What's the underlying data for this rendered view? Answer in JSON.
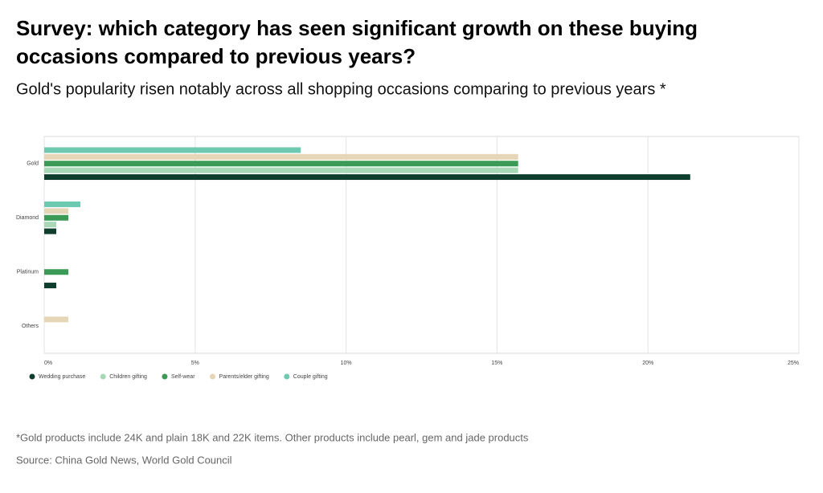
{
  "chart_data": {
    "type": "bar",
    "orientation": "horizontal",
    "title": "Survey: which category has seen significant growth on these buying occasions compared to previous years?",
    "subtitle": "Gold's popularity risen notably across all shopping occasions comparing to previous years *",
    "categories": [
      "Gold",
      "Diamond",
      "Platinum",
      "Others"
    ],
    "series": [
      {
        "name": "Wedding purchase",
        "color": "#0f3d2e",
        "values": [
          21.4,
          0.4,
          0.4,
          0
        ]
      },
      {
        "name": "Children gifting",
        "color": "#a9d8b8",
        "values": [
          15.7,
          0.4,
          0,
          0
        ]
      },
      {
        "name": "Self-wear",
        "color": "#3b9a56",
        "values": [
          15.7,
          0.8,
          0.8,
          0
        ]
      },
      {
        "name": "Parents/elder gifting",
        "color": "#e4d6b6",
        "values": [
          15.7,
          0.8,
          0,
          0.8
        ]
      },
      {
        "name": "Couple gifting",
        "color": "#6dcab1",
        "values": [
          8.5,
          1.2,
          0,
          0
        ]
      }
    ],
    "xlim": [
      0,
      25
    ],
    "xticks": [
      {
        "value": 0,
        "label": "0%"
      },
      {
        "value": 5,
        "label": "5%"
      },
      {
        "value": 10,
        "label": "10%"
      },
      {
        "value": 15,
        "label": "15%"
      },
      {
        "value": 20,
        "label": "20%"
      },
      {
        "value": 25,
        "label": "25%"
      }
    ],
    "grid": true,
    "legend": "bottom",
    "footnote": "*Gold products include 24K and plain 18K and 22K items. Other products include pearl, gem and jade products",
    "source": "Source: China Gold News, World Gold Council"
  }
}
